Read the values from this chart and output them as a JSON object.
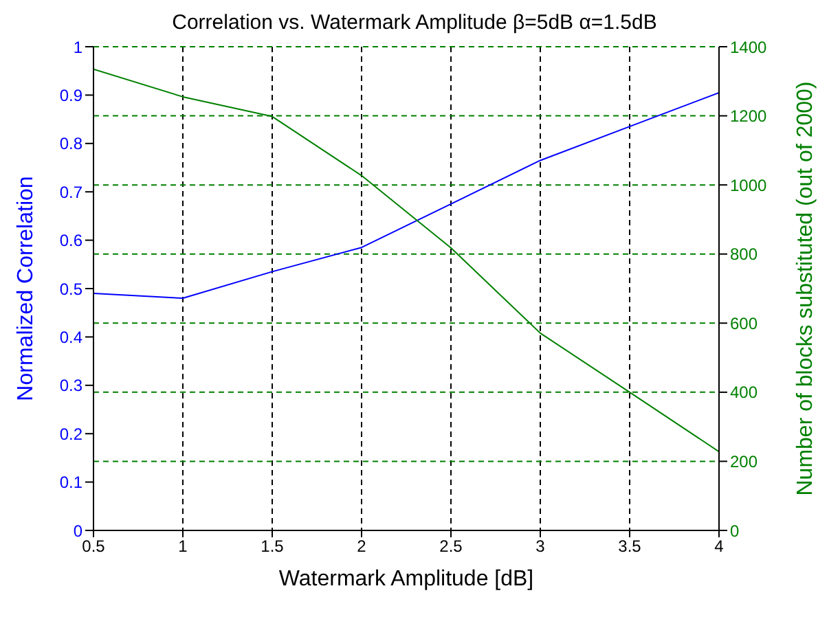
{
  "chart_data": {
    "type": "line",
    "title": "Correlation vs. Watermark Amplitude β=5dB α=1.5dB",
    "xlabel": "Watermark Amplitude [dB]",
    "ylabel": "Normalized Correlation",
    "y2label": "Number of blocks substituted (out of 2000)",
    "x": [
      0.5,
      1,
      1.5,
      2,
      2.5,
      3,
      3.5,
      4
    ],
    "series": [
      {
        "color": "#0000ff",
        "values": [
          0.49,
          0.48,
          0.535,
          0.585,
          0.675,
          0.765,
          0.835,
          0.905
        ]
      },
      {
        "color": "#008000",
        "axis": "y2",
        "values": [
          1335,
          1255,
          1198,
          1027,
          818,
          571,
          400,
          228
        ]
      }
    ],
    "xlim": [
      0.5,
      4
    ],
    "xticks": [
      0.5,
      1,
      1.5,
      2,
      2.5,
      3,
      3.5,
      4
    ],
    "ylim": [
      0,
      1
    ],
    "yticks": [
      0,
      0.1,
      0.2,
      0.3,
      0.4,
      0.5,
      0.6,
      0.7,
      0.8,
      0.9,
      1
    ],
    "y2lim": [
      0,
      1400
    ],
    "y2ticks": [
      0,
      200,
      400,
      600,
      800,
      1000,
      1200,
      1400
    ],
    "grid": true,
    "marker": "none",
    "line_style": "solid"
  }
}
